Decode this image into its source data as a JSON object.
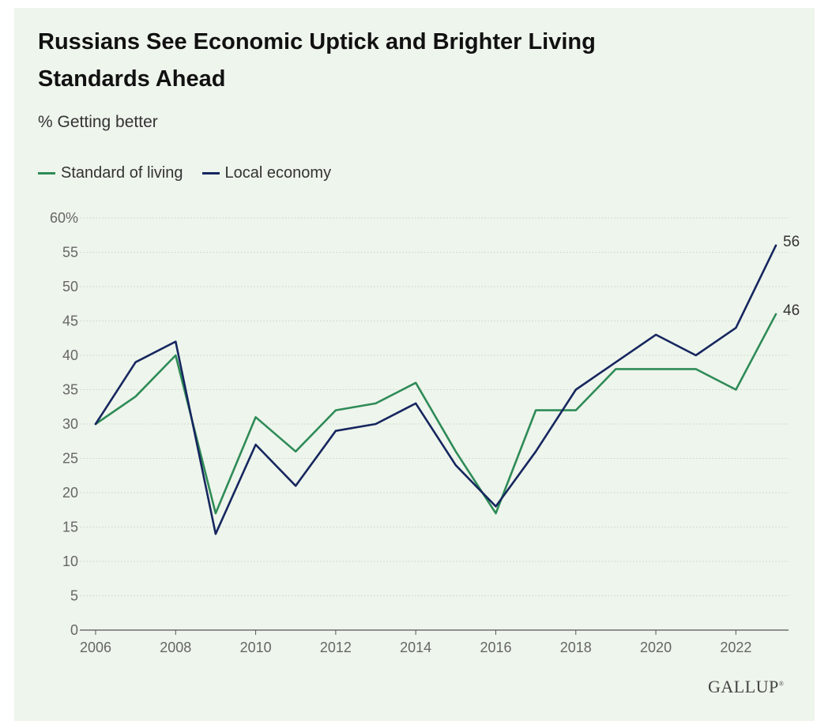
{
  "chart_data": {
    "type": "line",
    "title": "Russians See Economic Uptick and Brighter Living Standards Ahead",
    "subtitle": "% Getting better",
    "x": [
      2006,
      2007,
      2008,
      2009,
      2010,
      2011,
      2012,
      2013,
      2014,
      2015,
      2016,
      2017,
      2018,
      2019,
      2020,
      2021,
      2022,
      2023
    ],
    "series": [
      {
        "name": "Standard of living",
        "color": "#2e8b57",
        "values": [
          30,
          34,
          40,
          17,
          31,
          26,
          32,
          33,
          36,
          26,
          17,
          32,
          32,
          38,
          38,
          38,
          35,
          46
        ],
        "end_label": "46"
      },
      {
        "name": "Local economy",
        "color": "#16265f",
        "values": [
          30,
          39,
          42,
          14,
          27,
          21,
          29,
          30,
          33,
          24,
          18,
          26,
          35,
          39,
          43,
          40,
          44,
          56
        ],
        "end_label": "56"
      }
    ],
    "xlim": [
      2006,
      2023
    ],
    "ylim": [
      0,
      60
    ],
    "x_ticks": [
      "2006",
      "2008",
      "2010",
      "2012",
      "2014",
      "2016",
      "2018",
      "2020",
      "2022"
    ],
    "y_ticks": [
      "0",
      "5",
      "10",
      "15",
      "20",
      "25",
      "30",
      "35",
      "40",
      "45",
      "50",
      "55",
      "60%"
    ],
    "grid": true,
    "legend_position": "top-left"
  },
  "source": "GALLUP"
}
